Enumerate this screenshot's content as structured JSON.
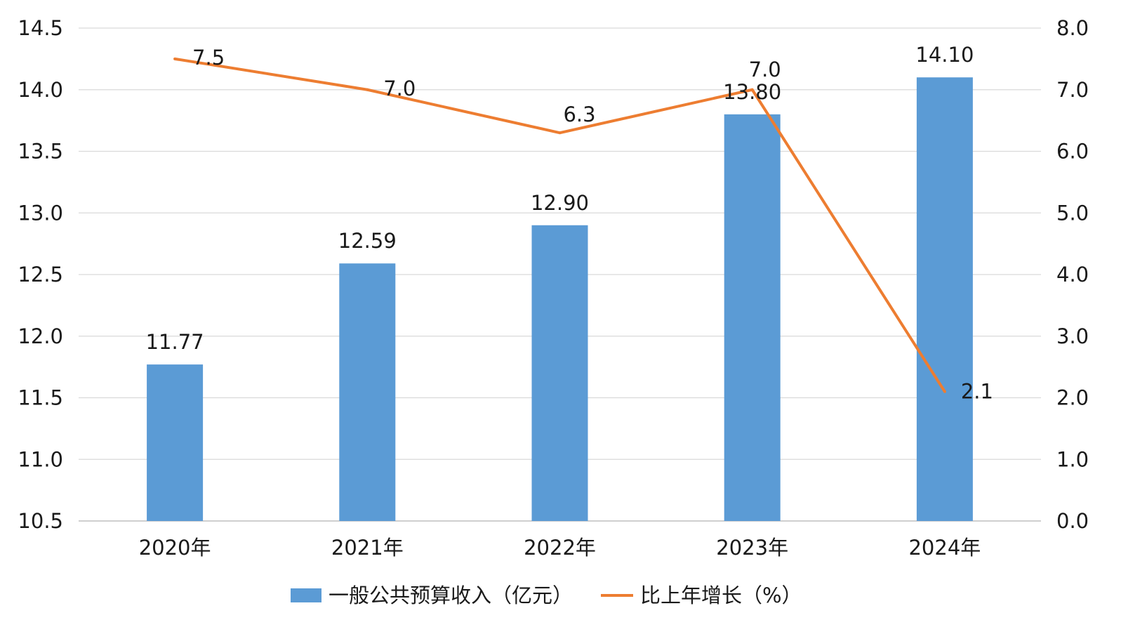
{
  "chart_data": {
    "type": "bar",
    "categories": [
      "2020年",
      "2021年",
      "2022年",
      "2023年",
      "2024年"
    ],
    "series": [
      {
        "name": "一般公共预算收入（亿元）",
        "type": "bar",
        "axis": "left",
        "values": [
          11.77,
          12.59,
          12.9,
          13.8,
          14.1
        ],
        "labels": [
          "11.77",
          "12.59",
          "12.90",
          "13.80",
          "14.10"
        ],
        "color": "#5b9bd5"
      },
      {
        "name": "比上年增长（%）",
        "type": "line",
        "axis": "right",
        "values": [
          7.5,
          7.0,
          6.3,
          7.0,
          2.1
        ],
        "labels": [
          "7.5",
          "7.0",
          "6.3",
          "7.0",
          "2.1"
        ],
        "color": "#ed7d31"
      }
    ],
    "y_left": {
      "min": 10.5,
      "max": 14.5,
      "ticks": [
        "10.5",
        "11.0",
        "11.5",
        "12.0",
        "12.5",
        "13.0",
        "13.5",
        "14.0",
        "14.5"
      ]
    },
    "y_right": {
      "min": 0,
      "max": 8,
      "ticks": [
        "0.0",
        "1.0",
        "2.0",
        "3.0",
        "4.0",
        "5.0",
        "6.0",
        "7.0",
        "8.0"
      ]
    },
    "grid": true,
    "legend": "bottom-center",
    "gridline_color": "#d9d9d9"
  }
}
